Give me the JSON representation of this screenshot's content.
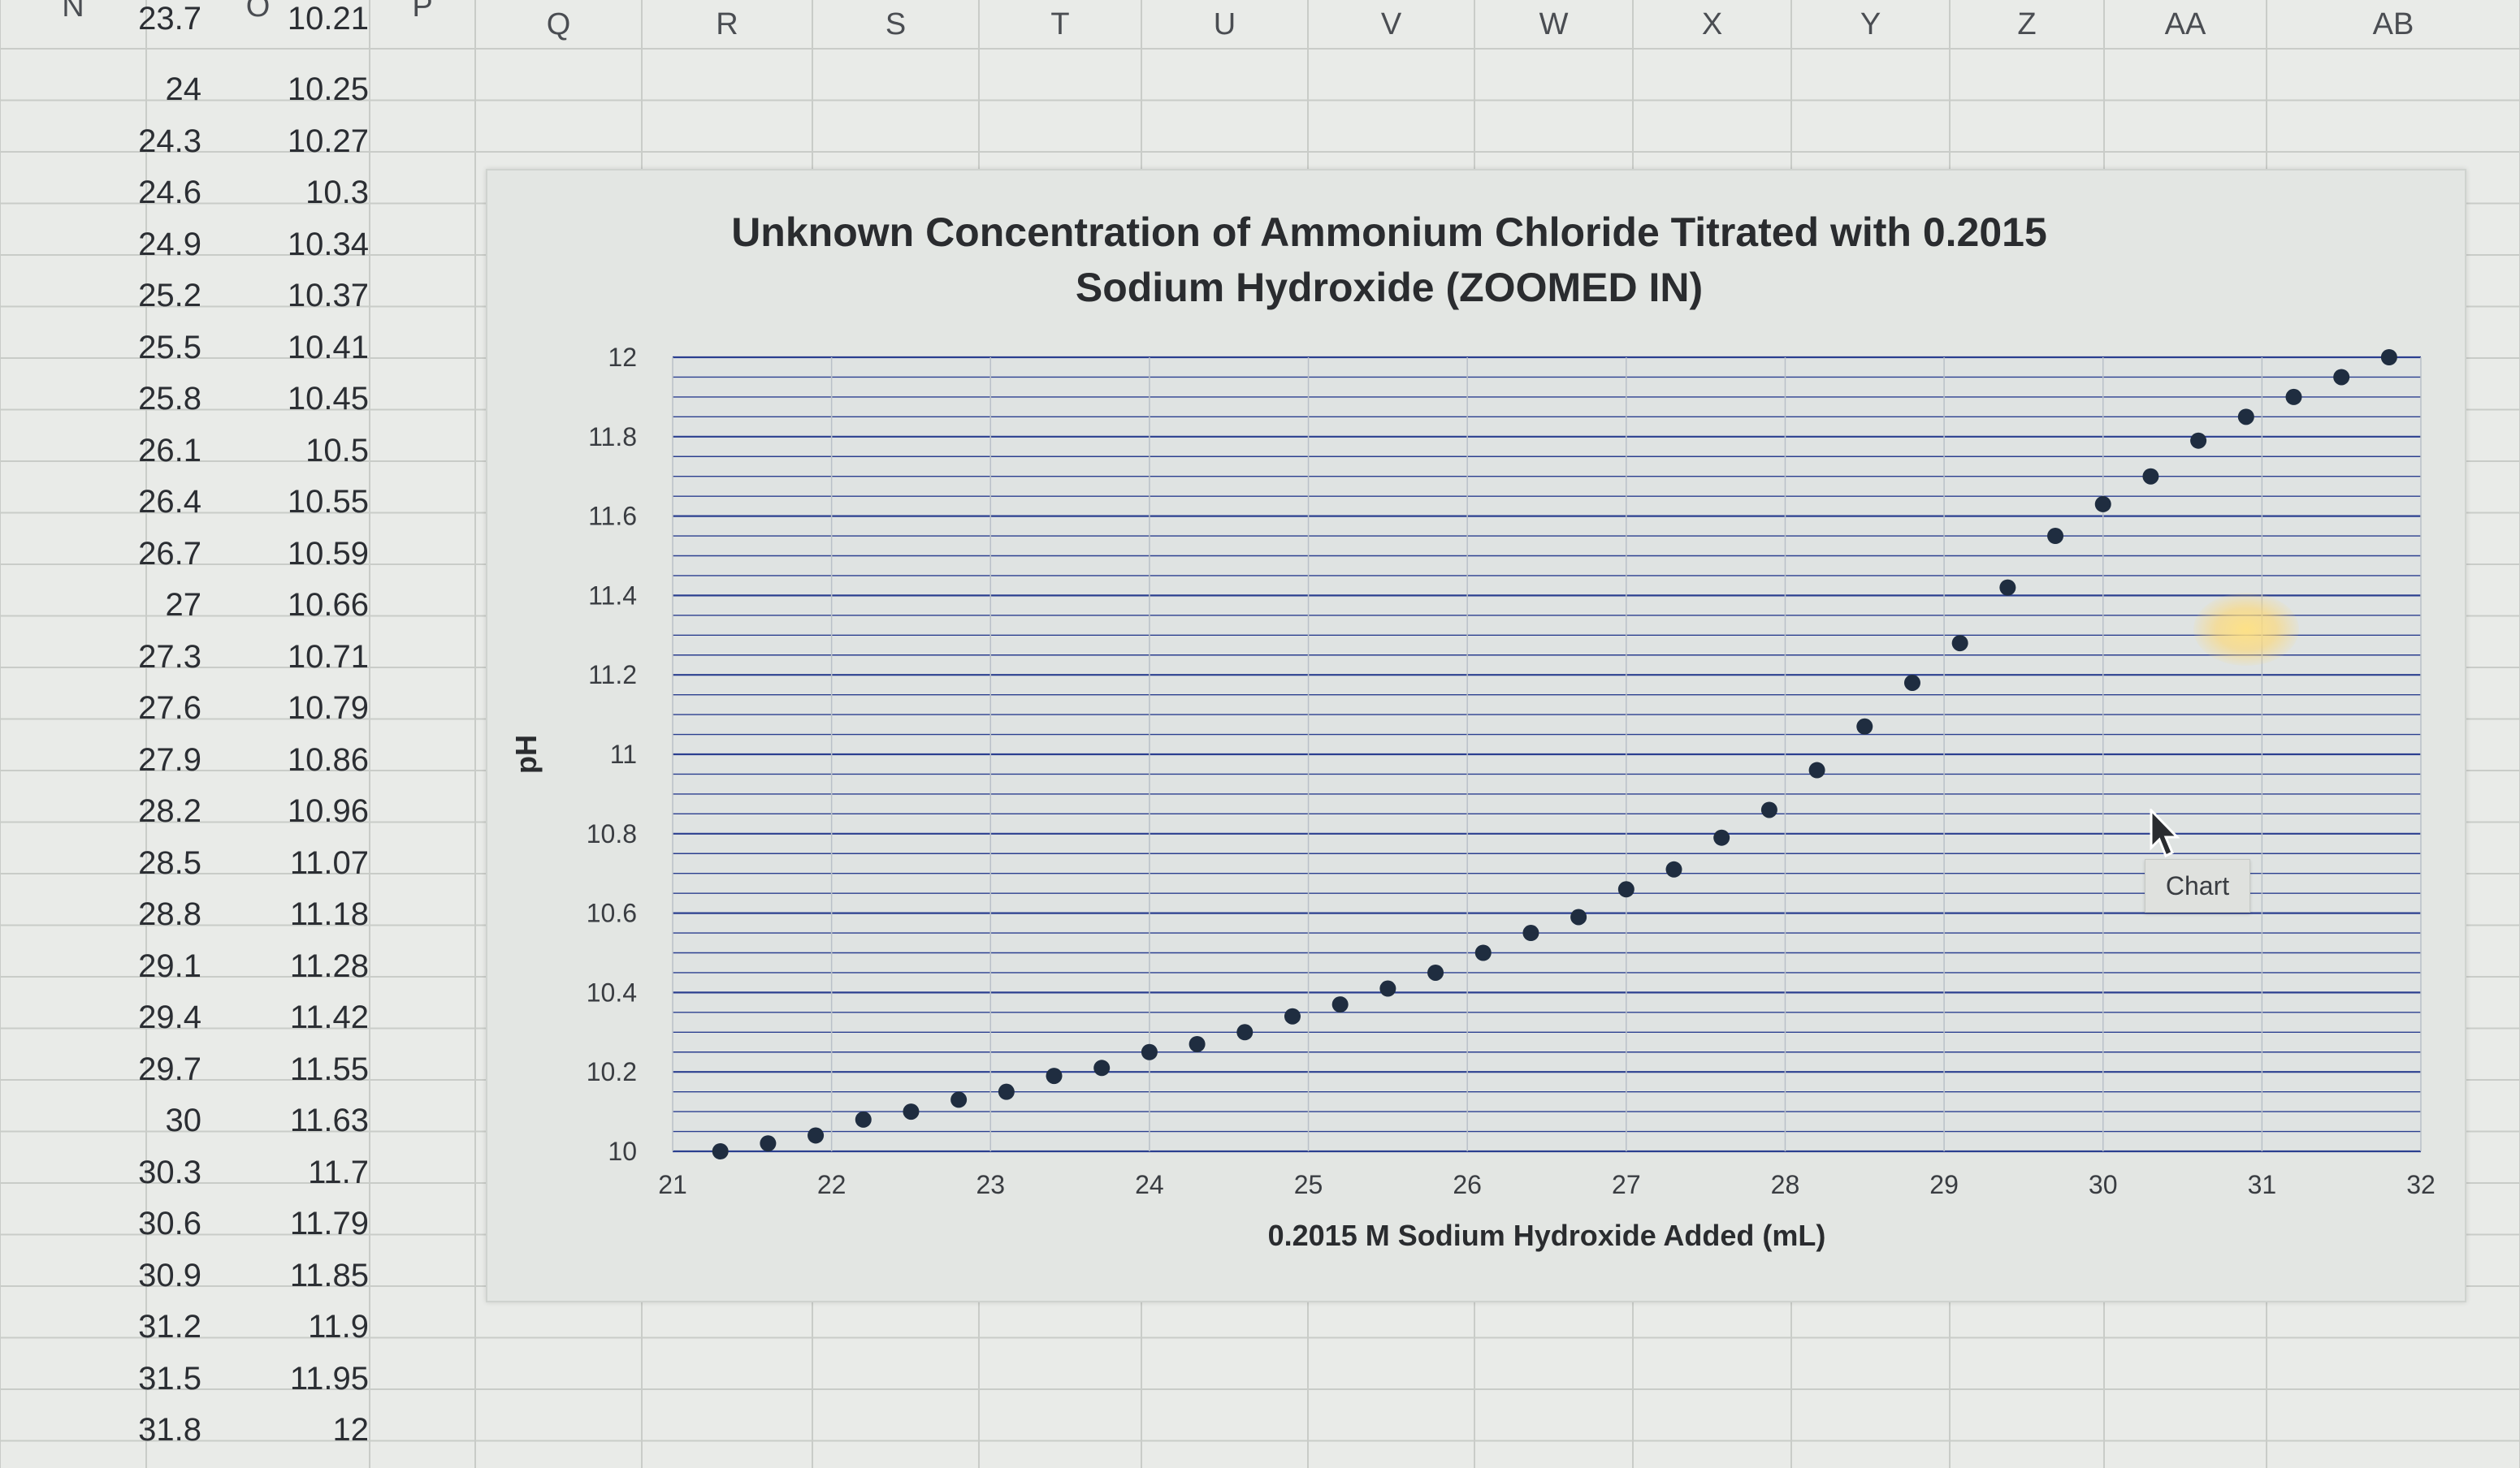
{
  "spreadsheet": {
    "column_headers": [
      "N",
      "O",
      "P",
      "Q",
      "R",
      "S",
      "T",
      "U",
      "V",
      "W",
      "X",
      "Y",
      "Z",
      "AA",
      "AB"
    ],
    "rows": [
      [
        "23.7",
        "10.21"
      ],
      [
        "24",
        "10.25"
      ],
      [
        "24.3",
        "10.27"
      ],
      [
        "24.6",
        "10.3"
      ],
      [
        "24.9",
        "10.34"
      ],
      [
        "25.2",
        "10.37"
      ],
      [
        "25.5",
        "10.41"
      ],
      [
        "25.8",
        "10.45"
      ],
      [
        "26.1",
        "10.5"
      ],
      [
        "26.4",
        "10.55"
      ],
      [
        "26.7",
        "10.59"
      ],
      [
        "27",
        "10.66"
      ],
      [
        "27.3",
        "10.71"
      ],
      [
        "27.6",
        "10.79"
      ],
      [
        "27.9",
        "10.86"
      ],
      [
        "28.2",
        "10.96"
      ],
      [
        "28.5",
        "11.07"
      ],
      [
        "28.8",
        "11.18"
      ],
      [
        "29.1",
        "11.28"
      ],
      [
        "29.4",
        "11.42"
      ],
      [
        "29.7",
        "11.55"
      ],
      [
        "30",
        "11.63"
      ],
      [
        "30.3",
        "11.7"
      ],
      [
        "30.6",
        "11.79"
      ],
      [
        "30.9",
        "11.85"
      ],
      [
        "31.2",
        "11.9"
      ],
      [
        "31.5",
        "11.95"
      ],
      [
        "31.8",
        "12"
      ]
    ]
  },
  "tooltip": {
    "label": "Chart"
  },
  "colors": {
    "marker": "#1f2d40",
    "gridline": "#2b3f8f",
    "background": "#e3e6e3"
  },
  "icons": {
    "cursor": "mouse-pointer-icon"
  },
  "chart_data": {
    "type": "scatter",
    "title": "Unknown Concentration of Ammonium Chloride Titrated with 0.2015 Sodium Hydroxide (ZOOMED IN)",
    "xlabel": "0.2015 M Sodium Hydroxide Added (mL)",
    "ylabel": "pH",
    "xlim": [
      21,
      32
    ],
    "ylim": [
      10,
      12
    ],
    "xticks": [
      "21",
      "22",
      "23",
      "24",
      "25",
      "26",
      "27",
      "28",
      "29",
      "30",
      "31",
      "32"
    ],
    "yticks": [
      "10",
      "10.2",
      "10.4",
      "10.6",
      "10.8",
      "11",
      "11.2",
      "11.4",
      "11.6",
      "11.8",
      "12"
    ],
    "grid": "horizontal major and minor",
    "legend": "none",
    "points": [
      [
        21.3,
        10.0
      ],
      [
        21.6,
        10.02
      ],
      [
        21.9,
        10.04
      ],
      [
        22.2,
        10.08
      ],
      [
        22.5,
        10.1
      ],
      [
        22.8,
        10.13
      ],
      [
        23.1,
        10.15
      ],
      [
        23.4,
        10.19
      ],
      [
        23.7,
        10.21
      ],
      [
        24.0,
        10.25
      ],
      [
        24.3,
        10.27
      ],
      [
        24.6,
        10.3
      ],
      [
        24.9,
        10.34
      ],
      [
        25.2,
        10.37
      ],
      [
        25.5,
        10.41
      ],
      [
        25.8,
        10.45
      ],
      [
        26.1,
        10.5
      ],
      [
        26.4,
        10.55
      ],
      [
        26.7,
        10.59
      ],
      [
        27.0,
        10.66
      ],
      [
        27.3,
        10.71
      ],
      [
        27.6,
        10.79
      ],
      [
        27.9,
        10.86
      ],
      [
        28.2,
        10.96
      ],
      [
        28.5,
        11.07
      ],
      [
        28.8,
        11.18
      ],
      [
        29.1,
        11.28
      ],
      [
        29.4,
        11.42
      ],
      [
        29.7,
        11.55
      ],
      [
        30.0,
        11.63
      ],
      [
        30.3,
        11.7
      ],
      [
        30.6,
        11.79
      ],
      [
        30.9,
        11.85
      ],
      [
        31.2,
        11.9
      ],
      [
        31.5,
        11.95
      ],
      [
        31.8,
        12.0
      ]
    ]
  }
}
